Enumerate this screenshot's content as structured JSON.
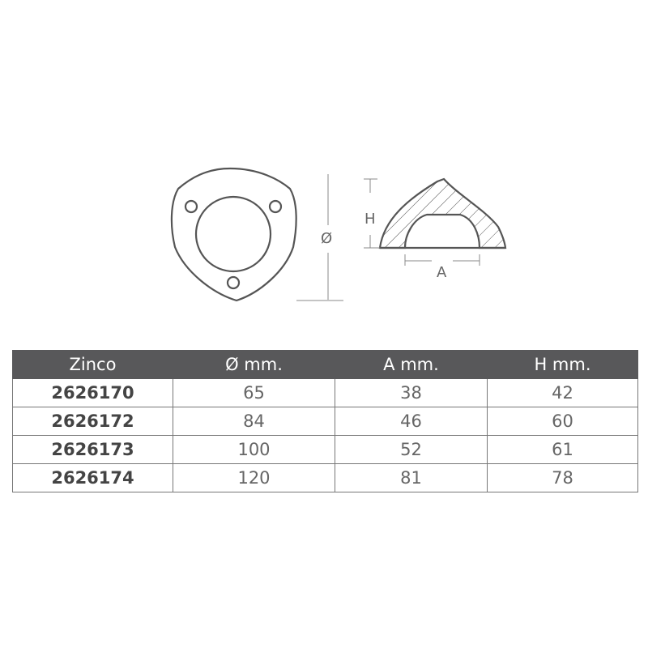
{
  "drawing": {
    "labels": {
      "diameter": "Ø",
      "height": "H",
      "width": "A"
    }
  },
  "table": {
    "headers": [
      "Zinco",
      "Ø mm.",
      "A mm.",
      "H mm."
    ],
    "rows": [
      [
        "2626170",
        "65",
        "38",
        "42"
      ],
      [
        "2626172",
        "84",
        "46",
        "60"
      ],
      [
        "2626173",
        "100",
        "52",
        "61"
      ],
      [
        "2626174",
        "120",
        "81",
        "78"
      ]
    ]
  },
  "colors": {
    "header_bg": "#58585a",
    "line": "#555555"
  }
}
